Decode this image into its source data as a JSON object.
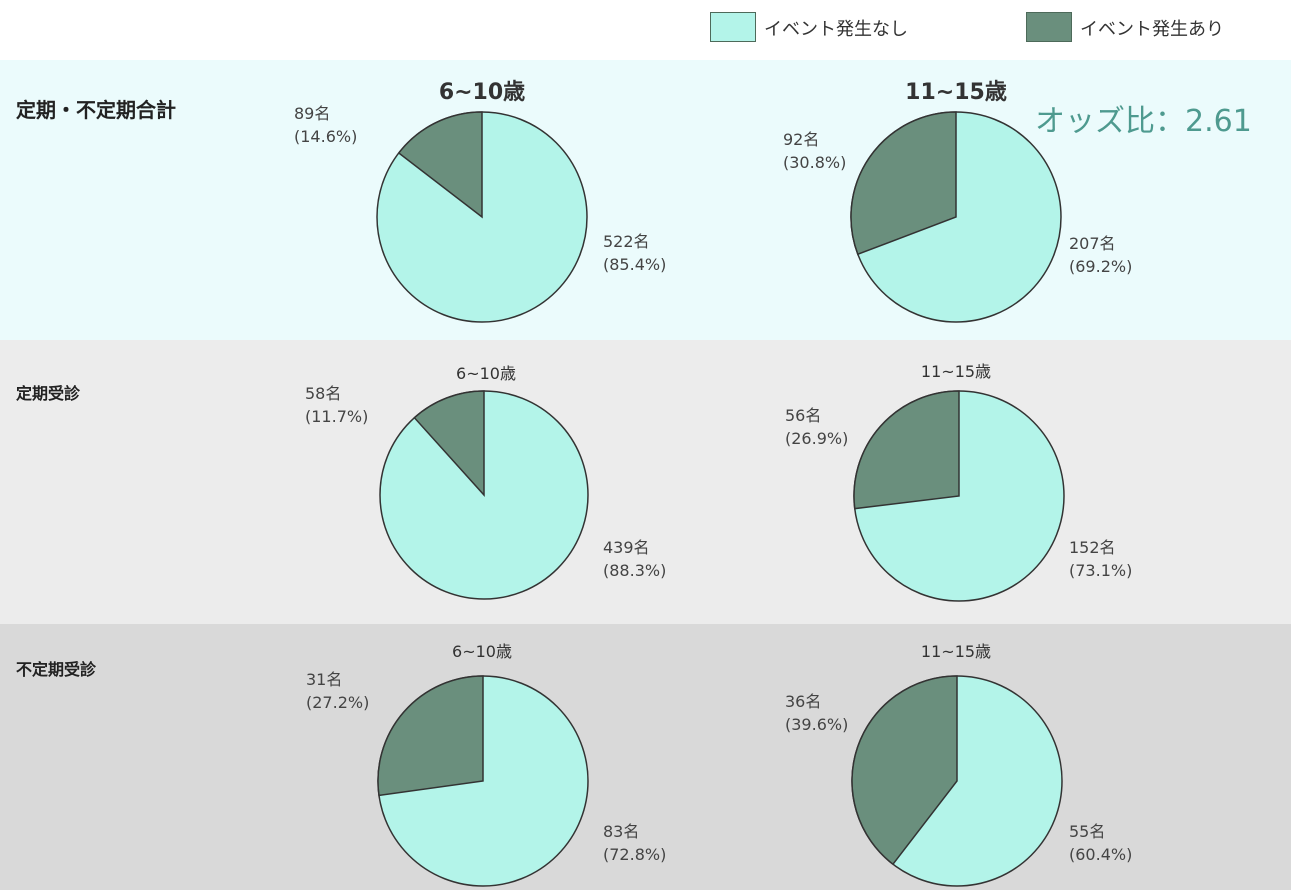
{
  "legend": {
    "no_event": {
      "label": "イベント発生なし",
      "color": "#b3f4e9"
    },
    "event": {
      "label": "イベント発生あり",
      "color": "#6a8f7d"
    }
  },
  "odds_ratio": "オッズ比：2.61",
  "chart_data": {
    "type": "pie",
    "groups": [
      {
        "title": "定期・不定期合計",
        "charts": [
          {
            "title": "6~10歳",
            "slices": [
              {
                "series": "イベント発生あり",
                "count_label": "89名",
                "pct_label": "(14.6%)",
                "value": 89
              },
              {
                "series": "イベント発生なし",
                "count_label": "522名",
                "pct_label": "(85.4%)",
                "value": 522
              }
            ]
          },
          {
            "title": "11~15歳",
            "slices": [
              {
                "series": "イベント発生あり",
                "count_label": "92名",
                "pct_label": "(30.8%)",
                "value": 92
              },
              {
                "series": "イベント発生なし",
                "count_label": "207名",
                "pct_label": "(69.2%)",
                "value": 207
              }
            ]
          }
        ]
      },
      {
        "title": "定期受診",
        "charts": [
          {
            "title": "6~10歳",
            "slices": [
              {
                "series": "イベント発生あり",
                "count_label": "58名",
                "pct_label": "(11.7%)",
                "value": 58
              },
              {
                "series": "イベント発生なし",
                "count_label": "439名",
                "pct_label": "(88.3%)",
                "value": 439
              }
            ]
          },
          {
            "title": "11~15歳",
            "slices": [
              {
                "series": "イベント発生あり",
                "count_label": "56名",
                "pct_label": "(26.9%)",
                "value": 56
              },
              {
                "series": "イベント発生なし",
                "count_label": "152名",
                "pct_label": "(73.1%)",
                "value": 152
              }
            ]
          }
        ]
      },
      {
        "title": "不定期受診",
        "charts": [
          {
            "title": "6~10歳",
            "slices": [
              {
                "series": "イベント発生あり",
                "count_label": "31名",
                "pct_label": "(27.2%)",
                "value": 31
              },
              {
                "series": "イベント発生なし",
                "count_label": "83名",
                "pct_label": "(72.8%)",
                "value": 83
              }
            ]
          },
          {
            "title": "11~15歳",
            "slices": [
              {
                "series": "イベント発生あり",
                "count_label": "36名",
                "pct_label": "(39.6%)",
                "value": 36
              },
              {
                "series": "イベント発生なし",
                "count_label": "55名",
                "pct_label": "(60.4%)",
                "value": 55
              }
            ]
          }
        ]
      }
    ],
    "band_colors": [
      "#ebfbfc",
      "#ececec",
      "#d9d9d9"
    ]
  }
}
